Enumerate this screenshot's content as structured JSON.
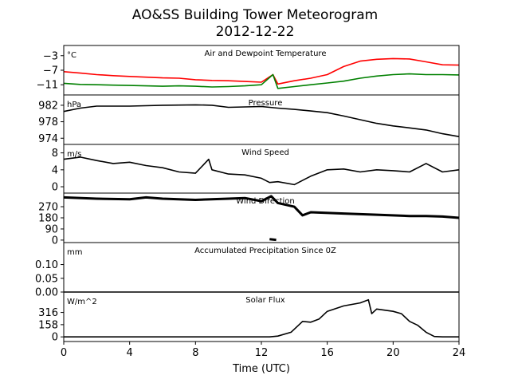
{
  "chart_data": {
    "type": "line",
    "title": "AO&SS Building Tower Meteorogram",
    "subtitle": "2012-12-22",
    "xlabel": "Time (UTC)",
    "x_ticks": [
      "0",
      "4",
      "8",
      "12",
      "16",
      "20",
      "24"
    ],
    "xlim": [
      0,
      24
    ],
    "panels": [
      {
        "id": "temperature",
        "label": "Air and Dewpoint Temperature",
        "unit": "°C",
        "ylim": [
          -13.8,
          -0.2
        ],
        "y_ticks": [
          -3,
          -7,
          -11
        ],
        "y_tick_labels": [
          "−3",
          "−7",
          "−11"
        ],
        "series": [
          {
            "color": "#ff0000",
            "points": [
              [
                0,
                -7.4
              ],
              [
                1,
                -7.8
              ],
              [
                2,
                -8.2
              ],
              [
                3,
                -8.5
              ],
              [
                4,
                -8.7
              ],
              [
                5,
                -8.9
              ],
              [
                6,
                -9.1
              ],
              [
                7,
                -9.2
              ],
              [
                8,
                -9.6
              ],
              [
                9,
                -9.8
              ],
              [
                10,
                -9.9
              ],
              [
                11,
                -10.1
              ],
              [
                12,
                -10.3
              ],
              [
                12.7,
                -8.2
              ],
              [
                13,
                -10.8
              ],
              [
                14,
                -9.9
              ],
              [
                15,
                -9.2
              ],
              [
                16,
                -8.2
              ],
              [
                17,
                -6.0
              ],
              [
                18,
                -4.5
              ],
              [
                19,
                -4.0
              ],
              [
                20,
                -3.8
              ],
              [
                21,
                -3.9
              ],
              [
                22,
                -4.7
              ],
              [
                23,
                -5.5
              ],
              [
                24,
                -5.6
              ]
            ]
          },
          {
            "color": "#008000",
            "points": [
              [
                0,
                -10.6
              ],
              [
                1,
                -10.9
              ],
              [
                2,
                -11.0
              ],
              [
                3,
                -11.1
              ],
              [
                4,
                -11.2
              ],
              [
                5,
                -11.3
              ],
              [
                6,
                -11.4
              ],
              [
                7,
                -11.3
              ],
              [
                8,
                -11.4
              ],
              [
                9,
                -11.6
              ],
              [
                10,
                -11.5
              ],
              [
                11,
                -11.3
              ],
              [
                12,
                -11.0
              ],
              [
                12.7,
                -8.2
              ],
              [
                13,
                -12.0
              ],
              [
                14,
                -11.5
              ],
              [
                15,
                -11.0
              ],
              [
                16,
                -10.5
              ],
              [
                17,
                -10.0
              ],
              [
                18,
                -9.2
              ],
              [
                19,
                -8.6
              ],
              [
                20,
                -8.2
              ],
              [
                21,
                -8.0
              ],
              [
                22,
                -8.2
              ],
              [
                23,
                -8.2
              ],
              [
                24,
                -8.3
              ]
            ]
          }
        ]
      },
      {
        "id": "pressure",
        "label": "Pressure",
        "unit": "hPa",
        "ylim": [
          972.5,
          984.5
        ],
        "y_ticks": [
          982,
          978,
          974
        ],
        "y_tick_labels": [
          "982",
          "978",
          "974"
        ],
        "series": [
          {
            "color": "#000000",
            "points": [
              [
                0,
                980.5
              ],
              [
                1,
                981.3
              ],
              [
                2,
                981.8
              ],
              [
                4,
                981.8
              ],
              [
                6,
                982.0
              ],
              [
                8,
                982.1
              ],
              [
                9,
                982.0
              ],
              [
                10,
                981.5
              ],
              [
                12,
                981.7
              ],
              [
                13,
                981.3
              ],
              [
                14,
                981.0
              ],
              [
                15,
                980.6
              ],
              [
                16,
                980.2
              ],
              [
                17,
                979.4
              ],
              [
                18,
                978.5
              ],
              [
                19,
                977.6
              ],
              [
                20,
                977.0
              ],
              [
                21,
                976.5
              ],
              [
                22,
                976.0
              ],
              [
                23,
                975.1
              ],
              [
                24,
                974.4
              ]
            ]
          }
        ]
      },
      {
        "id": "wind-speed",
        "label": "Wind Speed",
        "unit": "m/s",
        "ylim": [
          -1.5,
          10
        ],
        "y_ticks": [
          8,
          4,
          0
        ],
        "y_tick_labels": [
          "8",
          "4",
          "0"
        ],
        "series": [
          {
            "color": "#000000",
            "points": [
              [
                0,
                6.5
              ],
              [
                1,
                7.0
              ],
              [
                2,
                6.2
              ],
              [
                3,
                5.5
              ],
              [
                4,
                5.8
              ],
              [
                5,
                5.0
              ],
              [
                6,
                4.5
              ],
              [
                7,
                3.5
              ],
              [
                8,
                3.2
              ],
              [
                8.8,
                6.5
              ],
              [
                9,
                4.0
              ],
              [
                10,
                3.0
              ],
              [
                11,
                2.8
              ],
              [
                12,
                2.0
              ],
              [
                12.5,
                1.0
              ],
              [
                13,
                1.2
              ],
              [
                14,
                0.5
              ],
              [
                15,
                2.5
              ],
              [
                16,
                4.0
              ],
              [
                17,
                4.2
              ],
              [
                18,
                3.5
              ],
              [
                19,
                4.0
              ],
              [
                20,
                3.8
              ],
              [
                21,
                3.5
              ],
              [
                22,
                5.5
              ],
              [
                23,
                3.5
              ],
              [
                24,
                4.0
              ]
            ]
          }
        ]
      },
      {
        "id": "wind-direction",
        "label": "Wind Direction",
        "unit": "",
        "ylim": [
          -20,
          380
        ],
        "y_ticks": [
          270,
          180,
          90,
          0
        ],
        "y_tick_labels": [
          "270",
          "180",
          "90",
          "0"
        ],
        "series": [
          {
            "color": "#000000",
            "points": [
              [
                0,
                345
              ],
              [
                2,
                335
              ],
              [
                4,
                330
              ],
              [
                5,
                345
              ],
              [
                6,
                335
              ],
              [
                8,
                325
              ],
              [
                10,
                335
              ],
              [
                11,
                340
              ],
              [
                12,
                315
              ],
              [
                12.6,
                355
              ],
              [
                13,
                300
              ],
              [
                14,
                270
              ],
              [
                14.5,
                200
              ],
              [
                15,
                225
              ],
              [
                17,
                215
              ],
              [
                19,
                205
              ],
              [
                21,
                195
              ],
              [
                22,
                195
              ],
              [
                23,
                190
              ],
              [
                24,
                180
              ]
            ]
          },
          {
            "color": "#000000",
            "points": [
              [
                12.5,
                8
              ],
              [
                12.9,
                2
              ]
            ]
          }
        ]
      },
      {
        "id": "precipitation",
        "label": "Accumulated Precipitation Since 0Z",
        "unit": "mm",
        "ylim": [
          0,
          0.18
        ],
        "y_ticks": [
          0.1,
          0.05,
          0.0
        ],
        "y_tick_labels": [
          "0.10",
          "0.05",
          "0.00"
        ],
        "series": [
          {
            "color": "#000000",
            "points": [
              [
                0,
                0
              ],
              [
                24,
                0
              ]
            ]
          }
        ]
      },
      {
        "id": "solar",
        "label": "Solar Flux",
        "unit": "W/m^2",
        "ylim": [
          -60,
          580
        ],
        "y_ticks": [
          316,
          158,
          0
        ],
        "y_tick_labels": [
          "316",
          "158",
          "0"
        ],
        "series": [
          {
            "color": "#000000",
            "points": [
              [
                0,
                0
              ],
              [
                12.5,
                0
              ],
              [
                13,
                10
              ],
              [
                13.8,
                60
              ],
              [
                14.5,
                200
              ],
              [
                15,
                190
              ],
              [
                15.5,
                230
              ],
              [
                16,
                330
              ],
              [
                17,
                400
              ],
              [
                18,
                440
              ],
              [
                18.5,
                480
              ],
              [
                18.7,
                300
              ],
              [
                19,
                360
              ],
              [
                20,
                330
              ],
              [
                20.5,
                300
              ],
              [
                21,
                200
              ],
              [
                21.5,
                150
              ],
              [
                22,
                60
              ],
              [
                22.5,
                5
              ],
              [
                23,
                0
              ],
              [
                24,
                0
              ]
            ]
          }
        ]
      }
    ]
  }
}
